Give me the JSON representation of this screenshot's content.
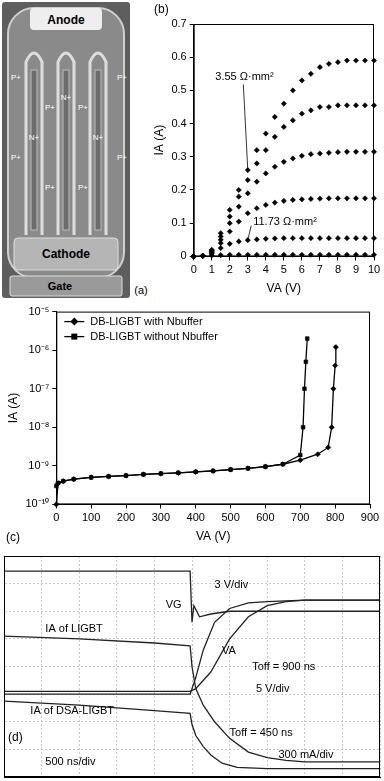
{
  "diagram": {
    "title": "(a)",
    "labels": {
      "anode": "Anode",
      "cathode": "Cathode",
      "gate": "Gate",
      "p_plus": "P+",
      "n_plus": "N+"
    }
  },
  "chart_data": [
    {
      "type": "scatter",
      "title": "(b)",
      "x_label": "VA (V)",
      "y_label": "IA (A)",
      "x": [
        0,
        0.5,
        1,
        1.5,
        2,
        2.5,
        3,
        3.5,
        4,
        4.5,
        5,
        5.5,
        6,
        6.5,
        7,
        7.5,
        8,
        8.5,
        9,
        9.5,
        10
      ],
      "series": [
        {
          "color": "#000000",
          "values": [
            0,
            0.002,
            0.02,
            0.07,
            0.14,
            0.2,
            0.26,
            0.32,
            0.37,
            0.42,
            0.46,
            0.5,
            0.53,
            0.55,
            0.57,
            0.58,
            0.585,
            0.59,
            0.59,
            0.59,
            0.59
          ]
        },
        {
          "color": "#000000",
          "values": [
            0,
            0.002,
            0.018,
            0.06,
            0.12,
            0.18,
            0.23,
            0.28,
            0.32,
            0.36,
            0.39,
            0.41,
            0.43,
            0.44,
            0.45,
            0.45,
            0.455,
            0.455,
            0.455,
            0.455,
            0.455
          ]
        },
        {
          "color": "#000000",
          "values": [
            0,
            0.002,
            0.015,
            0.05,
            0.1,
            0.15,
            0.19,
            0.225,
            0.25,
            0.27,
            0.285,
            0.295,
            0.303,
            0.308,
            0.31,
            0.312,
            0.314,
            0.315,
            0.315,
            0.315,
            0.315
          ]
        },
        {
          "color": "#000000",
          "values": [
            0,
            0.002,
            0.012,
            0.04,
            0.075,
            0.105,
            0.13,
            0.145,
            0.155,
            0.162,
            0.167,
            0.17,
            0.172,
            0.173,
            0.174,
            0.175,
            0.175,
            0.175,
            0.175,
            0.175,
            0.175
          ]
        },
        {
          "color": "#000000",
          "values": [
            0,
            0.001,
            0.008,
            0.025,
            0.038,
            0.045,
            0.049,
            0.051,
            0.053,
            0.054,
            0.055,
            0.055,
            0.055,
            0.055,
            0.055,
            0.055,
            0.055,
            0.055,
            0.055,
            0.055,
            0.055
          ]
        },
        {
          "color": "#000000",
          "values": [
            0,
            0.001,
            0.003,
            0.004,
            0.005,
            0.005,
            0.005,
            0.005,
            0.005,
            0.005,
            0.005,
            0.005,
            0.005,
            0.005,
            0.005,
            0.005,
            0.005,
            0.005,
            0.005,
            0.005,
            0.005
          ]
        }
      ],
      "marker": "diamond",
      "line_style": "none",
      "xlim": [
        0,
        10
      ],
      "xticks": [
        0,
        1,
        2,
        3,
        4,
        5,
        6,
        7,
        8,
        9,
        10
      ],
      "ylim": [
        0,
        0.7
      ],
      "yticks": [
        0,
        0.1,
        0.2,
        0.3,
        0.4,
        0.5,
        0.6,
        0.7
      ],
      "grid": false,
      "annotations": [
        "3.55 Ω·mm²",
        "11.73 Ω·mm²"
      ]
    },
    {
      "type": "line",
      "title": "(c)",
      "x_label": "VA (V)",
      "y_label": "IA (A)",
      "series": [
        {
          "name": "DB-LIGBT with Nbuffer",
          "color": "#000000",
          "marker": "diamond",
          "x": [
            0,
            5,
            20,
            50,
            100,
            150,
            200,
            250,
            300,
            350,
            400,
            450,
            500,
            550,
            600,
            650,
            700,
            750,
            780,
            790,
            795,
            800,
            802
          ],
          "values": [
            1e-10,
            3.5e-10,
            4e-10,
            4.5e-10,
            5e-10,
            5.3e-10,
            5.6e-10,
            6e-10,
            6.3e-10,
            6.6e-10,
            7e-10,
            7.4e-10,
            8e-10,
            8.6e-10,
            9.5e-10,
            1.1e-09,
            1.4e-09,
            2e-09,
            3e-09,
            1e-08,
            1e-07,
            4e-07,
            1.2e-06
          ]
        },
        {
          "name": "DB-LIGBT without Nbuffer",
          "color": "#000000",
          "marker": "square",
          "x": [
            0,
            5,
            20,
            50,
            100,
            150,
            200,
            250,
            300,
            350,
            400,
            450,
            500,
            550,
            600,
            650,
            700,
            708,
            712,
            716,
            720
          ],
          "values": [
            3e-10,
            3.6e-10,
            4e-10,
            4.5e-10,
            5e-10,
            5.3e-10,
            5.6e-10,
            6e-10,
            6.3e-10,
            6.6e-10,
            7e-10,
            7.4e-10,
            8e-10,
            8.6e-10,
            9.5e-10,
            1.1e-09,
            1.9e-09,
            1e-08,
            1e-07,
            5e-07,
            2e-06
          ]
        }
      ],
      "log": "y",
      "xlim": [
        0,
        900
      ],
      "xticks": [
        0,
        100,
        200,
        300,
        400,
        500,
        600,
        700,
        800,
        900
      ],
      "ylim": [
        1e-10,
        1e-05
      ],
      "yticks": [
        {
          "value": 1e-10,
          "label": "10⁻¹⁰"
        },
        {
          "value": 1e-09,
          "label": "10⁻⁹"
        },
        {
          "value": 1e-08,
          "label": "10⁻⁸"
        },
        {
          "value": 1e-07,
          "label": "10⁻⁷"
        },
        {
          "value": 1e-06,
          "label": "10⁻⁶"
        },
        {
          "value": 1e-05,
          "label": "10⁻⁵"
        }
      ],
      "grid": false,
      "legend": "upper left"
    },
    {
      "type": "line",
      "title": "(d)",
      "series": [
        {
          "color": "#222222",
          "x": [
            0,
            1,
            2,
            3,
            4,
            4.9,
            4.95,
            5.0,
            5.05,
            5.2,
            5.5,
            6,
            7,
            8,
            9,
            10
          ],
          "values": [
            7.45,
            7.45,
            7.45,
            7.45,
            7.45,
            7.45,
            7.45,
            5.6,
            6.2,
            5.8,
            5.9,
            6.0,
            6.0,
            6.0,
            6.0,
            6.0
          ]
        },
        {
          "color": "#222222",
          "x": [
            0,
            2,
            4,
            4.95,
            5.0,
            5.1,
            5.3,
            5.6,
            6,
            6.5,
            7,
            7.5,
            8,
            9,
            10
          ],
          "values": [
            5.1,
            5.0,
            4.85,
            4.75,
            4.0,
            3.2,
            2.6,
            2.0,
            1.4,
            0.9,
            0.7,
            0.6,
            0.55,
            0.55,
            0.55
          ]
        },
        {
          "color": "#222222",
          "x": [
            0,
            4.95,
            5.1,
            5.5,
            6,
            6.5,
            7,
            7.5,
            8,
            9,
            10
          ],
          "values": [
            3.1,
            3.1,
            3.2,
            3.8,
            5.0,
            5.8,
            6.2,
            6.35,
            6.4,
            6.4,
            6.4
          ]
        },
        {
          "color": "#222222",
          "x": [
            0,
            4.95,
            5.1,
            5.3,
            5.6,
            6,
            6.5,
            7,
            8,
            10
          ],
          "values": [
            3.0,
            3.0,
            3.6,
            4.6,
            5.6,
            6.1,
            6.3,
            6.35,
            6.4,
            6.4
          ]
        },
        {
          "color": "#222222",
          "x": [
            0,
            2,
            4,
            4.95,
            5.0,
            5.1,
            5.3,
            5.5,
            5.8,
            6.2,
            7,
            8,
            10
          ],
          "values": [
            2.75,
            2.6,
            2.4,
            2.3,
            1.9,
            1.5,
            1.1,
            0.8,
            0.5,
            0.35,
            0.3,
            0.3,
            0.3
          ]
        }
      ],
      "marker": "none",
      "line_style": "solid",
      "xlim": [
        0,
        10
      ],
      "xticks": [
        0,
        1,
        2,
        3,
        4,
        5,
        6,
        7,
        8,
        9,
        10
      ],
      "ylim": [
        0,
        8
      ],
      "yticks": [
        0,
        1,
        2,
        3,
        4,
        5,
        6,
        7,
        8
      ],
      "grid": true,
      "tick_labels": false,
      "annotations": [
        "VG",
        "3 V/div",
        "IA of LIGBT",
        "VA",
        "Toff = 900 ns",
        "5 V/div",
        "IA of DSA-LIGBT",
        "Toff = 450 ns",
        "300 mA/div",
        "500 ns/div"
      ]
    }
  ]
}
